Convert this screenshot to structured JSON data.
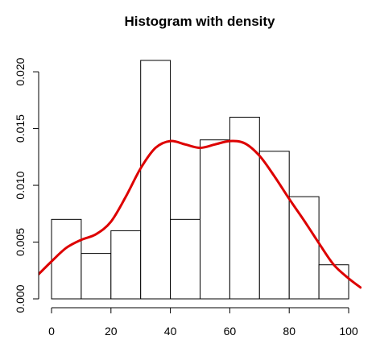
{
  "chart_data": {
    "type": "bar",
    "title": "Histogram with density",
    "xlabel": "",
    "ylabel": "",
    "xlim": [
      0,
      100
    ],
    "ylim": [
      0,
      0.021
    ],
    "x_ticks": [
      0,
      20,
      40,
      60,
      80,
      100
    ],
    "x_tick_labels": [
      "0",
      "20",
      "40",
      "60",
      "80",
      "100"
    ],
    "y_ticks": [
      0.0,
      0.005,
      0.01,
      0.015,
      0.02
    ],
    "y_tick_labels": [
      "0.000",
      "0.005",
      "0.010",
      "0.015",
      "0.020"
    ],
    "grid": false,
    "legend": "none",
    "bin_edges": [
      0,
      10,
      20,
      30,
      40,
      50,
      60,
      70,
      80,
      90,
      100
    ],
    "bin_density": [
      0.007,
      0.004,
      0.006,
      0.021,
      0.007,
      0.014,
      0.016,
      0.013,
      0.009,
      0.003
    ],
    "density_curve": {
      "x": [
        -5,
        0,
        5,
        10,
        15,
        20,
        25,
        30,
        35,
        40,
        45,
        50,
        55,
        60,
        65,
        70,
        75,
        80,
        85,
        90,
        95,
        100,
        104
      ],
      "y": [
        0.002,
        0.0033,
        0.0045,
        0.0052,
        0.0057,
        0.0068,
        0.009,
        0.0115,
        0.0133,
        0.0139,
        0.0136,
        0.0133,
        0.0136,
        0.0139,
        0.0137,
        0.0126,
        0.0108,
        0.0088,
        0.0069,
        0.0049,
        0.003,
        0.0018,
        0.001
      ]
    },
    "colors": {
      "bars_fill": "#ffffff",
      "bars_stroke": "#000000",
      "density_line": "#dd0000",
      "axes": "#000000"
    }
  }
}
